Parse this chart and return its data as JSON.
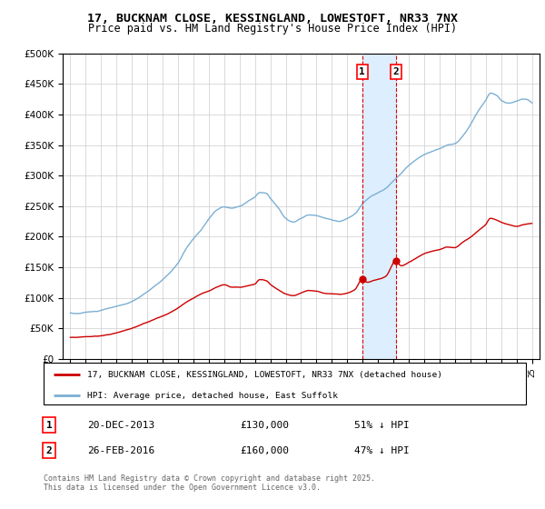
{
  "title": "17, BUCKNAM CLOSE, KESSINGLAND, LOWESTOFT, NR33 7NX",
  "subtitle": "Price paid vs. HM Land Registry's House Price Index (HPI)",
  "legend_line1": "17, BUCKNAM CLOSE, KESSINGLAND, LOWESTOFT, NR33 7NX (detached house)",
  "legend_line2": "HPI: Average price, detached house, East Suffolk",
  "footnote": "Contains HM Land Registry data © Crown copyright and database right 2025.\nThis data is licensed under the Open Government Licence v3.0.",
  "purchase1_date": "20-DEC-2013",
  "purchase1_price": 130000,
  "purchase1_label": "51% ↓ HPI",
  "purchase2_date": "26-FEB-2016",
  "purchase2_price": 160000,
  "purchase2_label": "47% ↓ HPI",
  "purchase1_x": 2013.97,
  "purchase2_x": 2016.15,
  "red_color": "#cc0000",
  "blue_color": "#7bafd4",
  "shade_color": "#ddeeff",
  "ylim": [
    0,
    500000
  ],
  "xlim": [
    1994.5,
    2025.5
  ]
}
